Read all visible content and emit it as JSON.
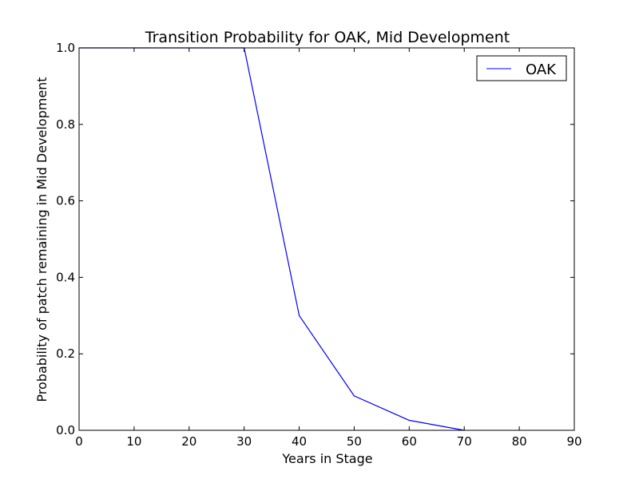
{
  "chart_data": {
    "type": "line",
    "title": "Transition Probability for OAK, Mid Development",
    "xlabel": "Years in Stage",
    "ylabel": "Probability of patch remaining in Mid Development",
    "xlim": [
      0,
      90
    ],
    "ylim": [
      0.0,
      1.0
    ],
    "xticks": [
      0,
      10,
      20,
      30,
      40,
      50,
      60,
      70,
      80,
      90
    ],
    "yticks": [
      0.0,
      0.2,
      0.4,
      0.6,
      0.8,
      1.0
    ],
    "xtick_labels": [
      "0",
      "10",
      "20",
      "30",
      "40",
      "50",
      "60",
      "70",
      "80",
      "90"
    ],
    "ytick_labels": [
      "0.0",
      "0.2",
      "0.4",
      "0.6",
      "0.8",
      "1.0"
    ],
    "grid": false,
    "legend_position": "top-right",
    "series": [
      {
        "name": "OAK",
        "color": "#0000ff",
        "x": [
          0,
          10,
          20,
          30,
          40,
          50,
          60,
          70
        ],
        "y": [
          1.0,
          1.0,
          1.0,
          1.0,
          0.3,
          0.09,
          0.026,
          0.0
        ]
      }
    ]
  }
}
